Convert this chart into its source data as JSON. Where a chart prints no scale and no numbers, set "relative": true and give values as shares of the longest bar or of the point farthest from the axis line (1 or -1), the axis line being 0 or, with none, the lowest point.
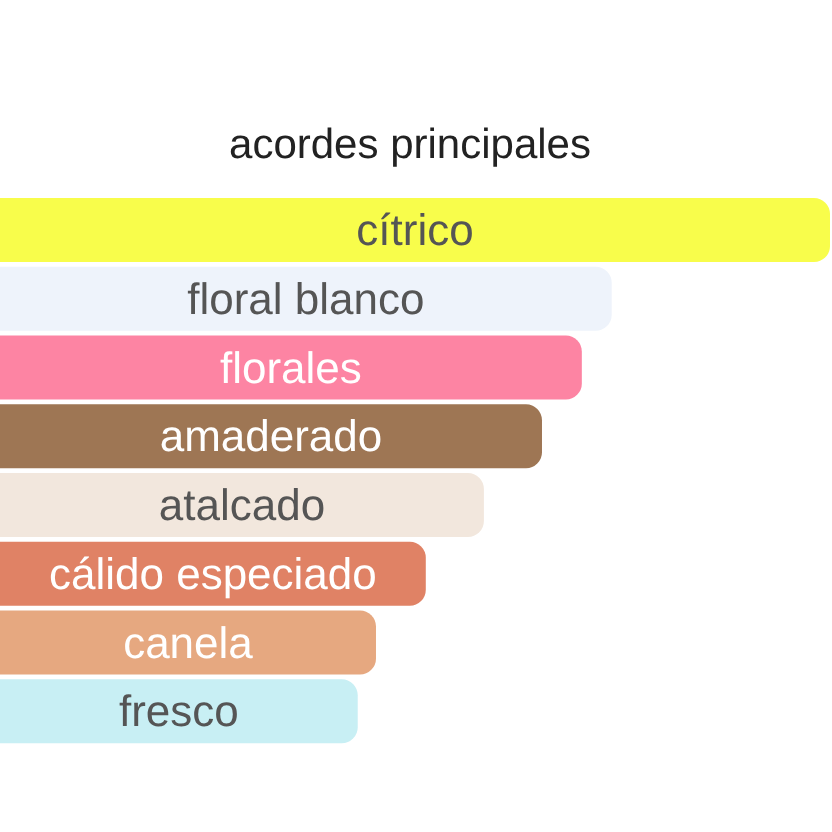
{
  "chart_data": {
    "type": "bar",
    "title": "acordes principales",
    "orientation": "horizontal",
    "relative": true,
    "categories": [
      "cítrico",
      "floral blanco",
      "florales",
      "amaderado",
      "atalcado",
      "cálido especiado",
      "canela",
      "fresco"
    ],
    "values": [
      1,
      0.737,
      0.701,
      0.653,
      0.583,
      0.513,
      0.453,
      0.431
    ],
    "colors": [
      "#f8fd4b",
      "#eef3fb",
      "#fd84a3",
      "#9e7654",
      "#f2e7dd",
      "#e08265",
      "#e6a880",
      "#c8eff4"
    ]
  }
}
